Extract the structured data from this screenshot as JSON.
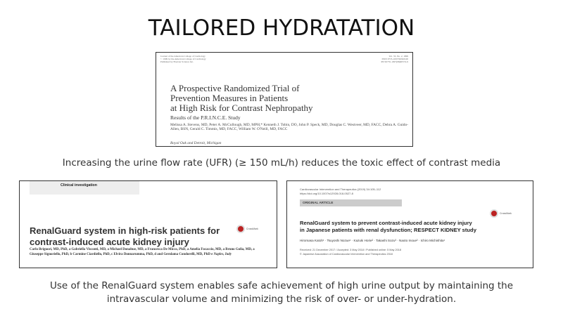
{
  "title": "TAILORED HYDRATATION",
  "paper1": {
    "meta_left": [
      "Journal of the American College of Cardiology",
      "© 1999 by the American College of Cardiology",
      "Published by Elsevier Science Inc."
    ],
    "meta_right": [
      "Vol. 33, No. 2, 1999",
      "ISSN 0735-1097/99/$20.00",
      "PII S0735-1097(98)00574-9"
    ],
    "title_lines": [
      "A Prospective Randomized Trial of",
      "Prevention Measures in Patients",
      "at High Risk for Contrast Nephropathy"
    ],
    "subtitle": "Results of the P.R.I.N.C.E. Study",
    "authors": "Melissa A. Stevens, MD, Peter A. McCullough, MD, MPH,* Kenneth J. Tobin, DO, John P. Speck, MD, Douglas C. Westveer, MD, FACC, Debra A. Guido-Allen, BSN, Gerald C. Timmis, MD, FACC, William W. O'Neill, MD, FACC",
    "location": "Royal Oak and Detroit, Michigan"
  },
  "caption1": "Increasing the urine flow rate (UFR) (≥ 150 mL/h) reduces the toxic effect of contrast media",
  "paper2": {
    "section": "Clinical investigation",
    "title_lines": [
      "RenalGuard system in high-risk patients for",
      "contrast-induced acute kidney injury"
    ],
    "crossmark": "CrossMark",
    "authors": "Carlo Briguori, MD, PhD, a Gabriella Visconti, MD, a Michael Donahue, MD, a Francesca De Micco, PhD, a Amelia Focaccio, MD, a Bruno Golia, MD, a Giuseppe Signoriello, PhD, b Carmine Ciardiello, PhD, c Elvira Donnarumma, PhD, d and Gerolama Condorelli, MD, PhD e",
    "location": "Naples, Italy"
  },
  "paper3": {
    "header": [
      "Cardiovascular Intervention and Therapeutics (2019) 34:105–112",
      "https://doi.org/10.1007/s12928-018-0527-8"
    ],
    "section": "ORIGINAL ARTICLE",
    "crossmark": "CrossMark",
    "title_lines": [
      "RenalGuard system to prevent contrast-induced acute kidney injury",
      "in Japanese patients with renal dysfunction; RESPECT KIDNEY study"
    ],
    "authors": "Hiromasa Katoh¹ · Tsuyoshi Nozue¹ · Kazuki Horie² · Takashi Sozu³ · Naoto Inoue² · Ichiro Michishita¹",
    "received": "Received: 21 December 2017 / Accepted: 3 May 2018 / Published online: 5 May 2018",
    "copyright": "© Japanese Association of Cardiovascular Intervention and Therapeutics 2018"
  },
  "caption2": [
    "Use of the RenalGuard system enables safe achievement of high urine output by maintaining the",
    "intravascular volume and minimizing the risk of over- or under-hydration."
  ]
}
